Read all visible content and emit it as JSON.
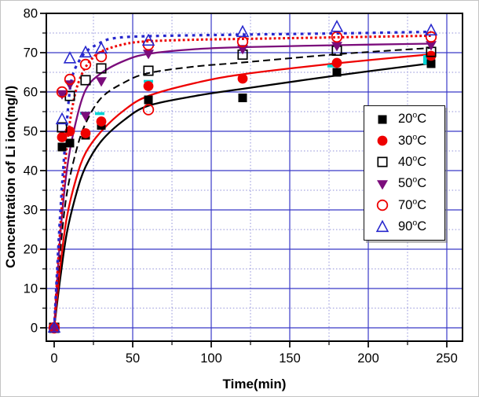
{
  "chart_data": {
    "type": "scatter",
    "title": "",
    "xlabel": "Time(min)",
    "ylabel": "Concentration of Li ion(mg/l)",
    "xlim": [
      -5,
      260
    ],
    "ylim": [
      -3.4,
      80
    ],
    "x_ticks": [
      0,
      50,
      100,
      150,
      200,
      250
    ],
    "x_minor_ticks": [
      25,
      75,
      125,
      175,
      225
    ],
    "y_ticks": [
      0,
      10,
      20,
      30,
      40,
      50,
      60,
      70,
      80
    ],
    "y_minor_ticks": [
      5,
      15,
      25,
      35,
      45,
      55,
      65,
      75
    ],
    "grid": {
      "major_color": "#3939c8",
      "minor_color": "#8e8ed8"
    },
    "legend_sup": "o",
    "legend_unit": "C",
    "x": [
      0,
      5,
      10,
      20,
      30,
      60,
      120,
      180,
      240
    ],
    "series": [
      {
        "label": "20",
        "marker": "square-filled",
        "color": "#000000",
        "line_style": "solid",
        "values": [
          0,
          46,
          47,
          49,
          51.5,
          58,
          58.5,
          65,
          67.2
        ],
        "fit": [
          [
            0,
            0
          ],
          [
            4,
            13
          ],
          [
            8,
            24
          ],
          [
            14,
            34
          ],
          [
            20,
            41
          ],
          [
            30,
            47.5
          ],
          [
            45,
            53
          ],
          [
            60,
            56.5
          ],
          [
            90,
            59
          ],
          [
            120,
            60.8
          ],
          [
            180,
            64.2
          ],
          [
            240,
            67.3
          ]
        ]
      },
      {
        "label": "30",
        "marker": "circle-filled",
        "color": "#ee0000",
        "line_style": "solid",
        "values": [
          0,
          48.5,
          50,
          49.5,
          52.5,
          61.5,
          63.4,
          67.4,
          69.2
        ],
        "fit": [
          [
            0,
            0
          ],
          [
            4,
            16
          ],
          [
            8,
            28
          ],
          [
            14,
            38
          ],
          [
            20,
            44.5
          ],
          [
            30,
            50
          ],
          [
            45,
            55.5
          ],
          [
            60,
            59
          ],
          [
            90,
            62.3
          ],
          [
            120,
            64.5
          ],
          [
            180,
            67.3
          ],
          [
            240,
            69.6
          ]
        ]
      },
      {
        "label": "40",
        "marker": "square-open",
        "color": "#000000",
        "line_style": "dashed",
        "values": [
          0,
          51,
          59,
          63,
          66,
          65.4,
          69.5,
          70.5,
          70.2
        ],
        "fit": [
          [
            0,
            0
          ],
          [
            4,
            20
          ],
          [
            8,
            34
          ],
          [
            14,
            45
          ],
          [
            20,
            52
          ],
          [
            30,
            58.5
          ],
          [
            45,
            62.5
          ],
          [
            60,
            64.8
          ],
          [
            90,
            66.5
          ],
          [
            120,
            67.5
          ],
          [
            180,
            69.6
          ],
          [
            240,
            71.2
          ]
        ]
      },
      {
        "label": "50",
        "marker": "triangle-down-filled",
        "color": "#7b0c7b",
        "line_style": "solid",
        "values": [
          0,
          59.5,
          62,
          54,
          62.8,
          69.8,
          71,
          71.8,
          72
        ],
        "fit": [
          [
            0,
            0
          ],
          [
            4,
            24
          ],
          [
            8,
            40
          ],
          [
            13,
            51
          ],
          [
            20,
            60.5
          ],
          [
            30,
            64.8
          ],
          [
            45,
            68
          ],
          [
            60,
            69.7
          ],
          [
            90,
            70.9
          ],
          [
            120,
            71.4
          ],
          [
            180,
            71.9
          ],
          [
            240,
            72.3
          ]
        ]
      },
      {
        "label": "70",
        "marker": "circle-open",
        "color": "#ee0000",
        "line_style": "dotted",
        "values": [
          0,
          60,
          63.2,
          67,
          69,
          72,
          72.8,
          74,
          74
        ],
        "extra_points": [
          [
            60,
            55.5
          ]
        ],
        "fit": [
          [
            0,
            0
          ],
          [
            4,
            26
          ],
          [
            8,
            46
          ],
          [
            12,
            57
          ],
          [
            16,
            63
          ],
          [
            22,
            67.5
          ],
          [
            30,
            70.3
          ],
          [
            45,
            72.2
          ],
          [
            60,
            72.9
          ],
          [
            90,
            73.3
          ],
          [
            120,
            73.5
          ],
          [
            180,
            73.9
          ],
          [
            240,
            74.3
          ]
        ]
      },
      {
        "label": "90",
        "marker": "triangle-up-open",
        "color": "#2727cd",
        "line_style": "dotted-wide",
        "values": [
          0,
          53,
          68.5,
          70,
          71,
          73,
          75.2,
          76.5,
          75.6
        ],
        "fit": [
          [
            0,
            0
          ],
          [
            4,
            30
          ],
          [
            8,
            52
          ],
          [
            11,
            63
          ],
          [
            16,
            68
          ],
          [
            21,
            70.5
          ],
          [
            27,
            72
          ],
          [
            37,
            73.6
          ],
          [
            60,
            74.2
          ],
          [
            120,
            74.6
          ],
          [
            180,
            74.9
          ],
          [
            240,
            75.3
          ]
        ]
      }
    ],
    "extra_marks": {
      "color": "#00d4d4",
      "dashes": [
        [
          19.5,
          54.6
        ],
        [
          29,
          54.5
        ],
        [
          60,
          62.7
        ],
        [
          177,
          66.6
        ]
      ],
      "squares": [
        [
          238,
          68.2
        ]
      ]
    },
    "legend_position": "middle-right",
    "grid_on": true
  }
}
